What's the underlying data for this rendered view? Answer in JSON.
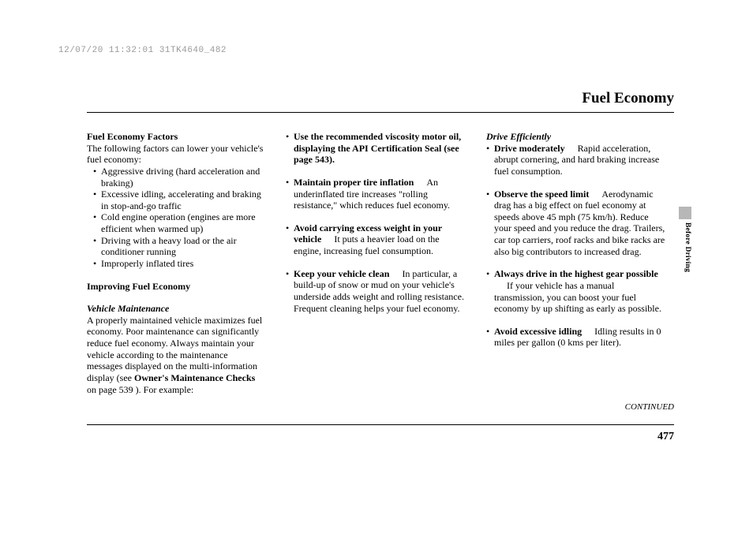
{
  "watermark": "12/07/20 11:32:01 31TK4640_482",
  "page_title": "Fuel Economy",
  "side_tab_label": "Before Driving",
  "continued_label": "CONTINUED",
  "page_number": "477",
  "col1": {
    "h1": "Fuel Economy Factors",
    "intro": "The following factors can lower your vehicle's fuel economy:",
    "factors": [
      "Aggressive driving (hard acceleration and braking)",
      "Excessive idling, accelerating and braking in stop-and-go traffic",
      "Cold engine operation (engines are more efficient when warmed up)",
      "Driving with a heavy load or the air conditioner running",
      "Improperly inflated tires"
    ],
    "h2": "Improving Fuel Economy",
    "h3": "Vehicle Maintenance",
    "maint_p1_a": "A properly maintained vehicle maximizes fuel economy. Poor maintenance can significantly reduce fuel economy. Always maintain your vehicle according to the maintenance messages displayed on the multi-information display (see ",
    "maint_bold": "Owner's Maintenance Checks",
    "maint_p1_b": " on page 539 ). For example:"
  },
  "col2": {
    "b1": "Use the recommended viscosity motor oil, displaying the API Certification Seal (see page 543).",
    "b2_lead": "Maintain proper tire inflation",
    "b2_rest": "An underinflated tire increases \"rolling resistance,\" which reduces fuel economy.",
    "b3_lead": "Avoid carrying excess weight in your vehicle",
    "b3_rest": "It puts a heavier load on the engine, increasing fuel consumption.",
    "b4_lead": "Keep your vehicle clean",
    "b4_rest": "In particular, a build-up of snow or mud on your vehicle's underside adds weight and rolling resistance. Frequent cleaning helps your fuel economy."
  },
  "col3": {
    "h1": "Drive Efficiently",
    "b1_lead": "Drive moderately",
    "b1_rest": "Rapid acceleration, abrupt cornering, and hard braking increase fuel consumption.",
    "b2_lead": "Observe the speed limit",
    "b2_rest": "Aerodynamic drag has a big effect on fuel economy at speeds above 45 mph (75 km/h). Reduce your speed and you reduce the drag. Trailers, car top carriers, roof racks and bike racks are also big contributors to increased drag.",
    "b3_lead": "Always drive in the highest gear possible",
    "b3_rest": "If your vehicle has a manual transmission, you can boost your fuel economy by up shifting as early as possible.",
    "b4_lead": "Avoid excessive idling",
    "b4_rest": "Idling results in 0 miles per gallon (0 kms per liter)."
  }
}
